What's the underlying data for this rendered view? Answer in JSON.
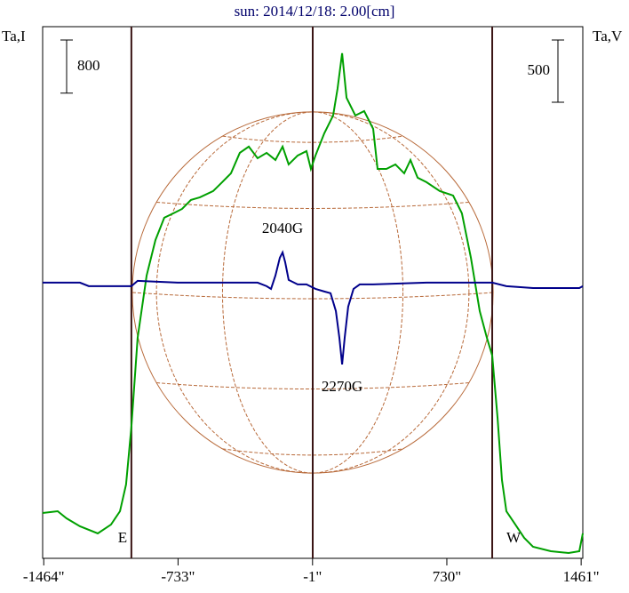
{
  "chart_data": {
    "type": "line",
    "title": "sun: 2014/12/18: 2.00[cm]",
    "y_label": "Ta,I",
    "y2_label": "Ta,V",
    "y_scale_bar": 800,
    "y2_scale_bar": 500,
    "xlim": [
      -1470,
      1470
    ],
    "xticks": [
      {
        "value": -1464,
        "label": "-1464\""
      },
      {
        "value": -733,
        "label": "-733\""
      },
      {
        "value": -1,
        "label": "-1\""
      },
      {
        "value": 730,
        "label": "730\""
      },
      {
        "value": 1461,
        "label": "1461\""
      }
    ],
    "ylim": [
      0,
      8000
    ],
    "y2lim": [
      -2200,
      2070
    ],
    "vlines": [
      -987,
      0,
      977
    ],
    "annotations": [
      "2040G",
      "2270G",
      "E",
      "W"
    ],
    "series": [
      {
        "color": "#00a000",
        "x": [
          -1470,
          -1388,
          -1340,
          -1267,
          -1170,
          -1098,
          -1049,
          -1016,
          -987,
          -953,
          -904,
          -856,
          -808,
          -759,
          -711,
          -663,
          -614,
          -542,
          -493,
          -445,
          -397,
          -348,
          -300,
          -251,
          -203,
          -164,
          -131,
          -82,
          -34,
          -10,
          15,
          63,
          111,
          135,
          160,
          184,
          232,
          280,
          329,
          353,
          401,
          450,
          498,
          532,
          571,
          619,
          692,
          764,
          812,
          861,
          909,
          948,
          977,
          1006,
          1030,
          1054,
          1103,
          1151,
          1199,
          1296,
          1393,
          1451,
          1470
        ],
        "values": [
          682,
          709,
          602,
          482,
          375,
          508,
          709,
          1111,
          1980,
          3318,
          4255,
          4790,
          5125,
          5191,
          5258,
          5392,
          5432,
          5526,
          5660,
          5794,
          6101,
          6195,
          6021,
          6101,
          5994,
          6195,
          5927,
          6061,
          6128,
          5860,
          6061,
          6396,
          6663,
          7065,
          7600,
          6931,
          6663,
          6730,
          6463,
          5860,
          5860,
          5927,
          5794,
          5994,
          5727,
          5660,
          5526,
          5459,
          5191,
          4522,
          3720,
          3318,
          3051,
          2114,
          1177,
          709,
          508,
          308,
          174,
          107,
          80,
          107,
          375
        ]
      },
      {
        "color": "#00008b",
        "axis": "y2",
        "x": [
          -1470,
          -1267,
          -1219,
          -987,
          -953,
          -735,
          -493,
          -300,
          -251,
          -227,
          -203,
          -179,
          -164,
          -150,
          -131,
          -82,
          -34,
          15,
          63,
          97,
          126,
          145,
          160,
          174,
          193,
          222,
          256,
          329,
          619,
          977,
          1054,
          1199,
          1451,
          1470
        ],
        "values": [
          14,
          14,
          -14,
          -14,
          29,
          14,
          14,
          14,
          -14,
          -36,
          71,
          214,
          257,
          179,
          36,
          0,
          0,
          -36,
          -57,
          -71,
          -214,
          -428,
          -643,
          -428,
          -179,
          -36,
          0,
          0,
          14,
          14,
          -14,
          -29,
          -29,
          -14
        ]
      }
    ]
  }
}
